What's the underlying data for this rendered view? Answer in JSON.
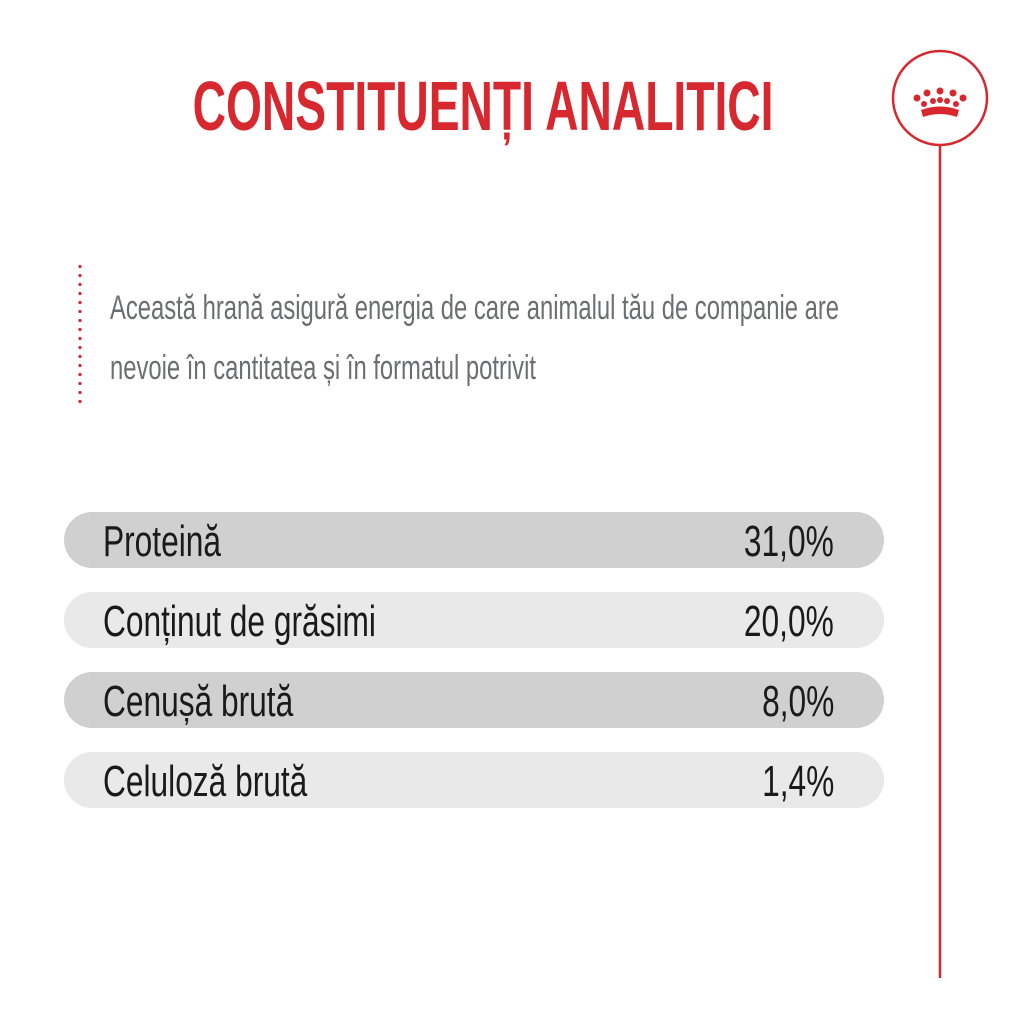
{
  "header": {
    "title": "CONSTITUENȚI ANALITICI"
  },
  "description": "Această hrană asigură energia de care animalul tău de companie are nevoie în cantitatea și în formatul potrivit",
  "table": {
    "rows": [
      [
        "Proteină",
        "31,0%"
      ],
      [
        "Conținut de grăsimi",
        "20,0%"
      ],
      [
        "Cenușă brută",
        "8,0%"
      ],
      [
        "Celuloză brută",
        "1,4%"
      ]
    ]
  }
}
